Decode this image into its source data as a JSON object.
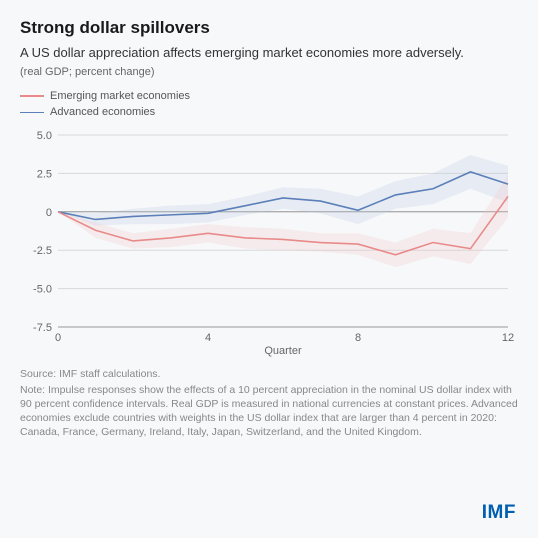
{
  "title": "Strong dollar spillovers",
  "subtitle": "A US dollar appreciation affects emerging market economies more adversely.",
  "unit": "(real GDP; percent change)",
  "legend": {
    "series1": {
      "label": "Emerging market economies",
      "color": "#e88a8a"
    },
    "series2": {
      "label": "Advanced economies",
      "color": "#5b7fb8"
    }
  },
  "chart": {
    "type": "line",
    "background_color": "#f7f8fa",
    "grid_color": "#d8d8d8",
    "axis_color": "#999999",
    "xlabel": "Quarter",
    "xlim": [
      0,
      12
    ],
    "xticks": [
      0,
      4,
      8,
      12
    ],
    "ylim": [
      -7.5,
      5.0
    ],
    "yticks": [
      -7.5,
      -5.0,
      -2.5,
      0,
      2.5,
      5.0
    ],
    "ytick_labels": [
      "-7.5",
      "-5.0",
      "-2.5",
      "0",
      "2.5",
      "5.0"
    ],
    "tick_fontsize": 11,
    "label_fontsize": 11,
    "line_width": 1.6,
    "band_opacity": 0.25,
    "series": {
      "eme": {
        "color": "#e88a8a",
        "fill": "#f4c2c2",
        "x": [
          0,
          1,
          2,
          3,
          4,
          5,
          6,
          7,
          8,
          9,
          10,
          11,
          12
        ],
        "y": [
          0.0,
          -1.2,
          -1.9,
          -1.7,
          -1.4,
          -1.7,
          -1.8,
          -2.0,
          -2.1,
          -2.8,
          -2.0,
          -2.4,
          1.0
        ],
        "y_upper": [
          0.0,
          -0.7,
          -1.4,
          -1.1,
          -0.8,
          -1.0,
          -1.1,
          -1.4,
          -1.4,
          -2.0,
          -1.1,
          -1.4,
          2.4
        ],
        "y_lower": [
          0.0,
          -1.7,
          -2.4,
          -2.3,
          -2.0,
          -2.4,
          -2.5,
          -2.6,
          -2.8,
          -3.6,
          -2.9,
          -3.4,
          -0.4
        ]
      },
      "ae": {
        "color": "#5b7fb8",
        "fill": "#b7c8e2",
        "x": [
          0,
          1,
          2,
          3,
          4,
          5,
          6,
          7,
          8,
          9,
          10,
          11,
          12
        ],
        "y": [
          0.0,
          -0.5,
          -0.3,
          -0.2,
          -0.1,
          0.4,
          0.9,
          0.7,
          0.1,
          1.1,
          1.5,
          2.6,
          1.8
        ],
        "y_upper": [
          0.0,
          -0.1,
          0.2,
          0.4,
          0.5,
          1.0,
          1.6,
          1.5,
          1.0,
          2.0,
          2.5,
          3.7,
          3.0
        ],
        "y_lower": [
          0.0,
          -0.9,
          -0.8,
          -0.8,
          -0.7,
          -0.2,
          0.2,
          -0.1,
          -0.8,
          0.2,
          0.5,
          1.5,
          0.6
        ]
      }
    }
  },
  "source": "Source: IMF staff calculations.",
  "note": "Note: Impulse responses show the effects of a 10 percent appreciation in the nominal US dollar index with 90 percent confidence intervals. Real GDP is measured in national currencies at constant prices. Advanced economies exclude countries with weights in the US dollar index that are larger than 4 percent in 2020: Canada, France, Germany, Ireland, Italy, Japan, Switzerland, and the United Kingdom.",
  "logo": "IMF",
  "logo_color": "#0060af"
}
